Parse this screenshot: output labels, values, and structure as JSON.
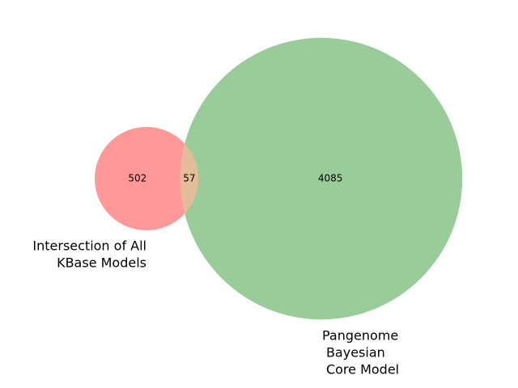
{
  "chart_data": {
    "type": "venn",
    "sets": [
      {
        "label": [
          "Intersection of All",
          "KBase Models"
        ],
        "color": "#ff9999"
      },
      {
        "label": [
          "Pangenome",
          "Bayesian",
          "Core Model"
        ],
        "color": "#99cc99"
      }
    ],
    "values": [
      502,
      57,
      4085
    ],
    "overlap_color": "#e3bd99"
  }
}
